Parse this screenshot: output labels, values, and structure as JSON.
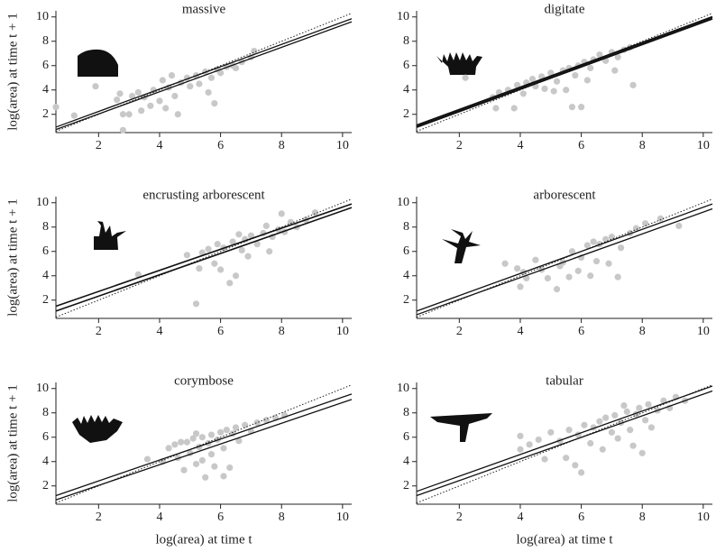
{
  "chart_data": [
    {
      "type": "scatter",
      "title": "massive",
      "ylabel": "log(area) at time t + 1",
      "xlim": [
        0.6,
        10.3
      ],
      "ylim": [
        0.5,
        10.5
      ],
      "xticks": [
        2,
        4,
        6,
        8,
        10
      ],
      "yticks": [
        2,
        4,
        6,
        8,
        10
      ],
      "color": "#c8c8c8",
      "x": [
        0.6,
        1.2,
        1.9,
        2.6,
        2.7,
        2.8,
        2.8,
        3.0,
        3.1,
        3.3,
        3.4,
        3.5,
        3.7,
        3.8,
        4.0,
        4.1,
        4.2,
        4.3,
        4.5,
        4.6,
        4.7,
        4.9,
        5.0,
        5.2,
        5.3,
        5.5,
        5.6,
        5.7,
        5.9,
        6.0,
        6.2,
        6.4,
        6.5,
        6.7,
        7.0,
        7.1,
        5.8,
        4.4
      ],
      "y": [
        2.6,
        1.9,
        4.3,
        3.2,
        3.7,
        2.0,
        0.7,
        2.0,
        3.5,
        3.8,
        2.3,
        3.4,
        2.7,
        4.0,
        3.1,
        4.8,
        2.5,
        4.2,
        3.5,
        2.0,
        4.6,
        5.0,
        4.3,
        5.2,
        4.5,
        5.5,
        3.8,
        5.0,
        5.7,
        5.4,
        5.9,
        6.0,
        5.8,
        6.3,
        6.7,
        7.2,
        2.9,
        5.2
      ],
      "fits": [
        {
          "x": [
            0.6,
            10.3
          ],
          "y": [
            0.95,
            9.85
          ],
          "width": 1.3
        },
        {
          "x": [
            0.6,
            10.3
          ],
          "y": [
            0.75,
            9.6
          ],
          "width": 1.3
        }
      ],
      "reference": {
        "x": [
          0.6,
          10.3
        ],
        "y": [
          0.6,
          10.3
        ]
      }
    },
    {
      "type": "scatter",
      "title": "digitate",
      "xlim": [
        0.6,
        10.3
      ],
      "ylim": [
        0.5,
        10.5
      ],
      "xticks": [
        2,
        4,
        6,
        8,
        10
      ],
      "yticks": [
        2,
        4,
        6,
        8,
        10
      ],
      "color": "#c8c8c8",
      "x": [
        2.2,
        3.1,
        3.2,
        3.3,
        3.6,
        3.8,
        3.9,
        4.1,
        4.2,
        4.4,
        4.5,
        4.7,
        4.8,
        5.0,
        5.1,
        5.2,
        5.4,
        5.5,
        5.6,
        5.7,
        5.8,
        5.9,
        6.0,
        6.1,
        6.3,
        6.4,
        6.6,
        6.8,
        7.0,
        7.2,
        7.4,
        7.6,
        7.7,
        7.1,
        6.2
      ],
      "y": [
        5.0,
        3.4,
        2.5,
        3.8,
        4.0,
        2.5,
        4.4,
        3.7,
        4.6,
        4.9,
        4.3,
        5.1,
        4.1,
        5.4,
        3.9,
        4.7,
        5.6,
        4.0,
        5.8,
        2.6,
        5.2,
        6.0,
        2.6,
        6.3,
        5.8,
        6.5,
        6.9,
        6.4,
        7.1,
        6.7,
        7.3,
        7.5,
        4.4,
        5.6,
        4.8
      ],
      "fits": [
        {
          "x": [
            0.6,
            10.3
          ],
          "y": [
            1.1,
            10.0
          ],
          "width": 2
        },
        {
          "x": [
            0.6,
            10.3
          ],
          "y": [
            0.95,
            9.85
          ],
          "width": 2
        }
      ],
      "reference": {
        "x": [
          0.6,
          10.3
        ],
        "y": [
          0.6,
          10.3
        ]
      }
    },
    {
      "type": "scatter",
      "title": "encrusting arborescent",
      "ylabel": "log(area) at time t + 1",
      "xlim": [
        0.6,
        10.3
      ],
      "ylim": [
        0.5,
        10.5
      ],
      "xticks": [
        2,
        4,
        6,
        8,
        10
      ],
      "yticks": [
        2,
        4,
        6,
        8,
        10
      ],
      "color": "#c8c8c8",
      "x": [
        3.3,
        4.9,
        5.2,
        5.3,
        5.4,
        5.6,
        5.8,
        5.9,
        6.0,
        6.1,
        6.3,
        6.4,
        6.5,
        6.7,
        6.8,
        6.9,
        7.0,
        7.2,
        7.4,
        7.5,
        7.7,
        7.9,
        8.0,
        8.1,
        8.3,
        8.5,
        8.8,
        9.1,
        6.6,
        7.6
      ],
      "y": [
        4.1,
        5.7,
        1.7,
        4.6,
        5.9,
        6.2,
        5.0,
        6.6,
        4.5,
        6.3,
        3.4,
        6.8,
        4.0,
        6.1,
        7.0,
        5.6,
        7.3,
        6.6,
        7.5,
        8.1,
        7.2,
        7.8,
        9.1,
        7.6,
        8.4,
        8.0,
        8.6,
        9.2,
        7.4,
        6.0
      ],
      "fits": [
        {
          "x": [
            0.6,
            10.3
          ],
          "y": [
            1.5,
            9.9
          ],
          "width": 1.6
        },
        {
          "x": [
            0.6,
            10.3
          ],
          "y": [
            1.1,
            9.6
          ],
          "width": 1.6
        }
      ],
      "reference": {
        "x": [
          0.6,
          10.3
        ],
        "y": [
          0.6,
          10.3
        ]
      }
    },
    {
      "type": "scatter",
      "title": "arborescent",
      "xlim": [
        0.6,
        10.3
      ],
      "ylim": [
        0.5,
        10.5
      ],
      "xticks": [
        2,
        4,
        6,
        8,
        10
      ],
      "yticks": [
        2,
        4,
        6,
        8,
        10
      ],
      "color": "#c8c8c8",
      "x": [
        3.5,
        3.9,
        4.0,
        4.1,
        4.2,
        4.5,
        4.7,
        4.9,
        5.2,
        5.3,
        5.4,
        5.6,
        5.7,
        5.9,
        6.0,
        6.2,
        6.3,
        6.4,
        6.5,
        6.6,
        6.8,
        6.9,
        7.0,
        7.2,
        7.3,
        7.6,
        8.1,
        8.6,
        9.2,
        7.8
      ],
      "y": [
        5.0,
        4.6,
        3.1,
        4.3,
        3.8,
        5.3,
        4.5,
        3.8,
        2.9,
        4.8,
        5.1,
        3.9,
        6.0,
        4.4,
        5.5,
        6.5,
        4.0,
        6.8,
        5.2,
        6.6,
        7.0,
        5.0,
        7.2,
        3.9,
        6.3,
        7.5,
        8.3,
        8.7,
        8.1,
        7.9
      ],
      "fits": [
        {
          "x": [
            0.6,
            10.3
          ],
          "y": [
            1.1,
            9.9
          ],
          "width": 1.3
        },
        {
          "x": [
            0.6,
            10.3
          ],
          "y": [
            0.8,
            9.5
          ],
          "width": 1.3
        }
      ],
      "reference": {
        "x": [
          0.6,
          10.3
        ],
        "y": [
          0.6,
          10.3
        ]
      }
    },
    {
      "type": "scatter",
      "title": "corymbose",
      "ylabel": "log(area) at time t + 1",
      "xlabel": "log(area) at time t",
      "xlim": [
        0.6,
        10.3
      ],
      "ylim": [
        0.5,
        10.5
      ],
      "xticks": [
        2,
        4,
        6,
        8,
        10
      ],
      "yticks": [
        2,
        4,
        6,
        8,
        10
      ],
      "color": "#c8c8c8",
      "x": [
        3.6,
        4.1,
        4.3,
        4.5,
        4.6,
        4.8,
        4.9,
        5.0,
        5.1,
        5.2,
        5.3,
        5.4,
        5.4,
        5.5,
        5.6,
        5.7,
        5.7,
        5.8,
        5.9,
        6.0,
        6.1,
        6.2,
        6.3,
        6.4,
        6.5,
        6.6,
        6.8,
        7.0,
        7.2,
        7.5,
        7.8,
        8.1,
        4.7,
        5.2,
        6.1
      ],
      "y": [
        4.2,
        4.0,
        5.1,
        5.4,
        4.3,
        3.3,
        5.6,
        4.7,
        5.9,
        3.8,
        5.2,
        6.0,
        4.1,
        2.7,
        5.5,
        6.2,
        4.6,
        3.6,
        5.8,
        6.4,
        5.1,
        6.6,
        3.5,
        6.3,
        6.8,
        5.7,
        7.0,
        6.5,
        7.2,
        7.4,
        7.6,
        7.8,
        5.6,
        6.3,
        2.8
      ],
      "fits": [
        {
          "x": [
            0.6,
            10.3
          ],
          "y": [
            1.2,
            9.55
          ],
          "width": 1.3
        },
        {
          "x": [
            0.6,
            10.3
          ],
          "y": [
            0.85,
            9.1
          ],
          "width": 1.3
        }
      ],
      "reference": {
        "x": [
          0.6,
          10.3
        ],
        "y": [
          0.6,
          10.3
        ]
      }
    },
    {
      "type": "scatter",
      "title": "tabular",
      "xlabel": "log(area) at time t",
      "xlim": [
        0.6,
        10.3
      ],
      "ylim": [
        0.5,
        10.5
      ],
      "xticks": [
        2,
        4,
        6,
        8,
        10
      ],
      "yticks": [
        2,
        4,
        6,
        8,
        10
      ],
      "color": "#c8c8c8",
      "x": [
        4.0,
        4.0,
        4.3,
        4.6,
        4.8,
        5.0,
        5.3,
        5.5,
        5.6,
        5.8,
        5.9,
        6.0,
        6.1,
        6.3,
        6.4,
        6.6,
        6.7,
        6.8,
        7.0,
        7.1,
        7.2,
        7.3,
        7.5,
        7.6,
        7.7,
        7.8,
        7.9,
        8.0,
        8.1,
        8.2,
        8.3,
        8.5,
        8.7,
        8.9,
        9.1,
        9.4,
        7.4
      ],
      "y": [
        6.1,
        5.0,
        5.4,
        5.8,
        4.2,
        6.4,
        5.7,
        4.3,
        6.6,
        3.7,
        6.2,
        3.1,
        7.0,
        5.5,
        6.8,
        7.3,
        5.0,
        7.6,
        6.4,
        7.8,
        5.9,
        7.2,
        8.1,
        6.6,
        5.3,
        7.9,
        8.4,
        4.7,
        7.4,
        8.7,
        6.8,
        8.2,
        9.0,
        8.4,
        9.3,
        9.0,
        8.6
      ],
      "fits": [
        {
          "x": [
            0.6,
            10.3
          ],
          "y": [
            1.55,
            10.2
          ],
          "width": 1.3
        },
        {
          "x": [
            0.6,
            10.3
          ],
          "y": [
            1.2,
            9.8
          ],
          "width": 1.3
        }
      ],
      "reference": {
        "x": [
          0.6,
          10.3
        ],
        "y": [
          0.6,
          10.3
        ]
      }
    }
  ]
}
